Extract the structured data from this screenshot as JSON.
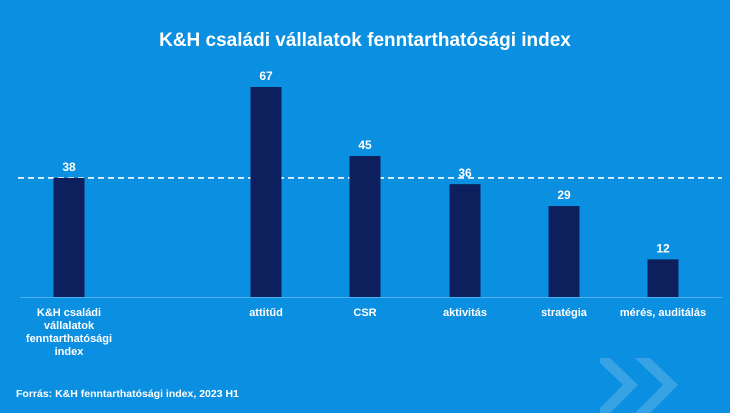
{
  "colors": {
    "background": "#0b8fe0",
    "bar": "#0d1f5c",
    "text": "#ffffff",
    "reference_line": "#ffffff"
  },
  "chart_data": {
    "type": "bar",
    "title": "K&H családi vállalatok fenntarthatósági index",
    "categories": [
      [
        "K&H családi",
        "vállalatok",
        "fenntarthatósági",
        "index"
      ],
      [
        "attitűd"
      ],
      [
        "CSR"
      ],
      [
        "aktivitás"
      ],
      [
        "stratégia"
      ],
      [
        "mérés, auditálás"
      ]
    ],
    "values": [
      38,
      67,
      45,
      36,
      29,
      12
    ],
    "data_labels": [
      "38",
      "67",
      "45",
      "36",
      "29",
      "12"
    ],
    "reference_line": {
      "value": 38,
      "style": "dashed"
    },
    "ylim": [
      0,
      67
    ],
    "grid": false,
    "legend": "none"
  },
  "footer": {
    "source": "Forrás: K&H fenntarthatósági index, 2023 H1"
  },
  "decoration": {
    "icon": "chevron-double-right-icon"
  }
}
